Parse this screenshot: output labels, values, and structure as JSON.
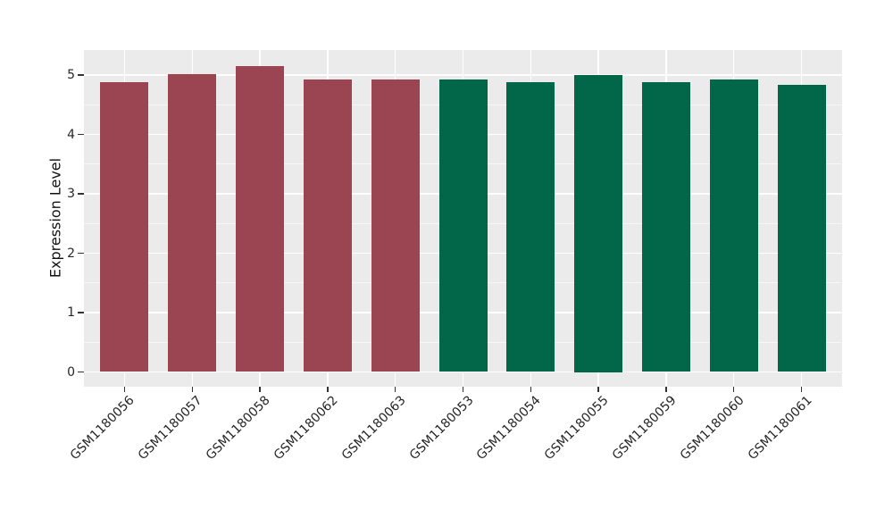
{
  "chart_data": {
    "type": "bar",
    "title": "",
    "xlabel": "",
    "ylabel": "Expression Level",
    "categories": [
      "GSM1180056",
      "GSM1180057",
      "GSM1180058",
      "GSM1180062",
      "GSM1180063",
      "GSM1180053",
      "GSM1180054",
      "GSM1180055",
      "GSM1180059",
      "GSM1180060",
      "GSM1180061"
    ],
    "values": [
      4.88,
      5.02,
      5.15,
      4.92,
      4.92,
      4.93,
      4.88,
      5.0,
      4.88,
      4.93,
      4.83
    ],
    "bar_colors": [
      "#9B4452",
      "#9B4452",
      "#9B4452",
      "#9B4452",
      "#9B4452",
      "#026649",
      "#026649",
      "#026649",
      "#026649",
      "#026649",
      "#026649"
    ],
    "groups": [
      {
        "name": "maroon-group",
        "color": "#9B4452",
        "categories": [
          "GSM1180056",
          "GSM1180057",
          "GSM1180058",
          "GSM1180062",
          "GSM1180063"
        ]
      },
      {
        "name": "green-group",
        "color": "#026649",
        "categories": [
          "GSM1180053",
          "GSM1180054",
          "GSM1180055",
          "GSM1180059",
          "GSM1180060",
          "GSM1180061"
        ]
      }
    ],
    "yticks": [
      0,
      1,
      2,
      3,
      4,
      5
    ],
    "ytick_labels": [
      "0",
      "1",
      "2",
      "3",
      "4",
      "5"
    ],
    "ylim": [
      -0.27,
      5.42
    ],
    "grid": {
      "h_major": "on",
      "h_minor": "on",
      "v_major": "on"
    },
    "legend": "none",
    "style": {
      "background": "#FFFFFF",
      "panel_bg": "#EBEBEB",
      "grid_major": "#FFFFFF",
      "grid_minor": "rgba(255,255,255,0.6)",
      "tick_color": "#333333",
      "text_color": "#262626"
    }
  }
}
